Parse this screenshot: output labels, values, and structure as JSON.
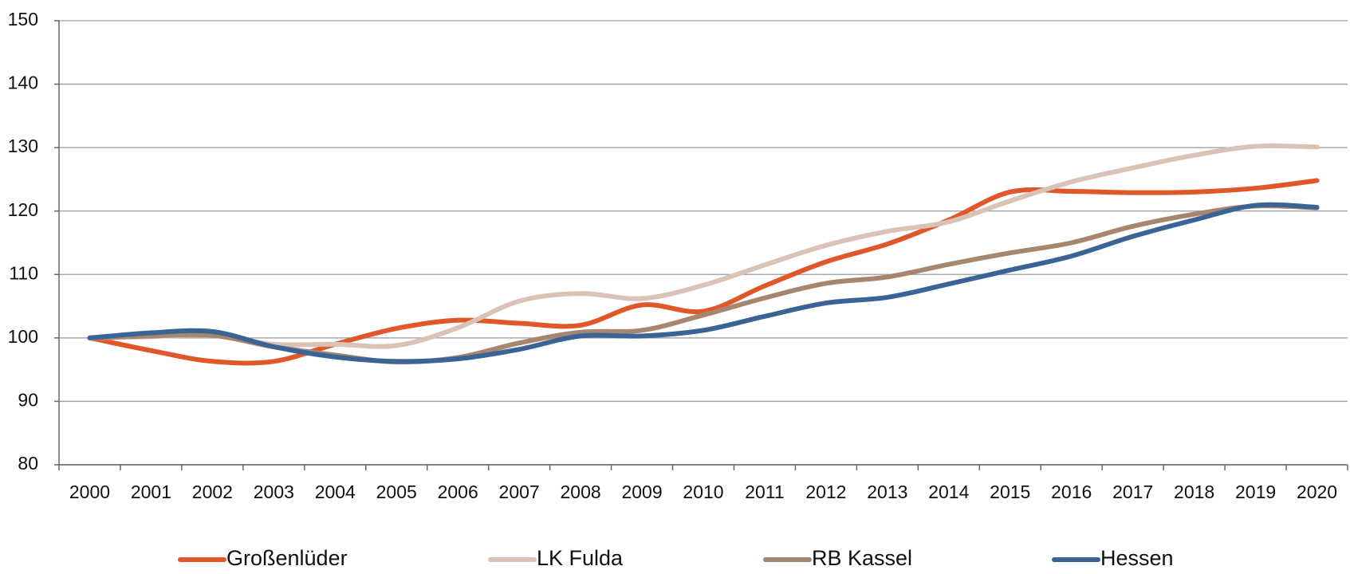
{
  "chart_data": {
    "type": "line",
    "categories": [
      "2000",
      "2001",
      "2002",
      "2003",
      "2004",
      "2005",
      "2006",
      "2007",
      "2008",
      "2009",
      "2010",
      "2011",
      "2012",
      "2013",
      "2014",
      "2015",
      "2016",
      "2017",
      "2018",
      "2019",
      "2020"
    ],
    "series": [
      {
        "name": "Großenlüder",
        "color": "#e0582a",
        "values": [
          100,
          98,
          96.3,
          96.3,
          99,
          101.5,
          102.8,
          102.3,
          102,
          105.2,
          104.2,
          108.2,
          112,
          114.8,
          118.6,
          123,
          123.1,
          122.9,
          123,
          123.6,
          124.8
        ]
      },
      {
        "name": "LK Fulda",
        "color": "#d9c3b6",
        "values": [
          100,
          100.2,
          100.4,
          99,
          99,
          98.8,
          101.6,
          105.8,
          107,
          106.2,
          108.3,
          111.5,
          114.6,
          116.8,
          118.3,
          121.6,
          124.6,
          126.8,
          128.8,
          130.2,
          130.1
        ]
      },
      {
        "name": "RB Kassel",
        "color": "#a78670",
        "values": [
          100,
          100.3,
          100.4,
          98.6,
          97.3,
          96.2,
          96.9,
          99.2,
          100.9,
          101.2,
          103.6,
          106.3,
          108.6,
          109.6,
          111.6,
          113.4,
          115,
          117.6,
          119.5,
          120.8,
          120.5
        ]
      },
      {
        "name": "Hessen",
        "color": "#3b6496",
        "values": [
          100,
          100.8,
          101,
          98.6,
          97,
          96.3,
          96.7,
          98.2,
          100.3,
          100.3,
          101.2,
          103.4,
          105.5,
          106.4,
          108.5,
          110.7,
          112.9,
          116,
          118.6,
          120.9,
          120.6
        ]
      }
    ],
    "ylim": [
      80,
      150
    ],
    "yticks": [
      80,
      90,
      100,
      110,
      120,
      130,
      140,
      150
    ],
    "grid": true,
    "legend": "bottom"
  }
}
